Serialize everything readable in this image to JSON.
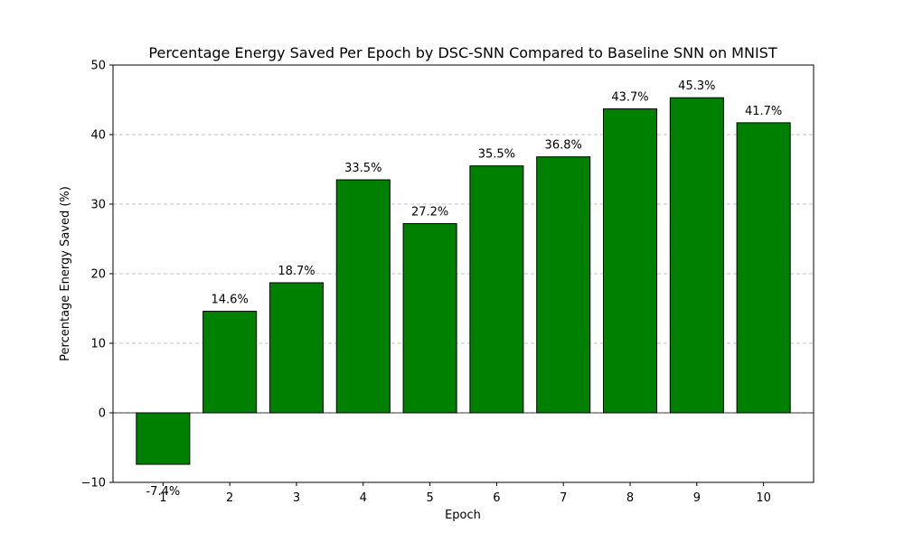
{
  "chart_data": {
    "type": "bar",
    "title": "Percentage Energy Saved Per Epoch by DSC-SNN Compared to Baseline SNN on MNIST",
    "xlabel": "Epoch",
    "ylabel": "Percentage Energy Saved (%)",
    "categories": [
      "1",
      "2",
      "3",
      "4",
      "5",
      "6",
      "7",
      "8",
      "9",
      "10"
    ],
    "values": [
      -7.4,
      14.6,
      18.7,
      33.5,
      27.2,
      35.5,
      36.8,
      43.7,
      45.3,
      41.7
    ],
    "data_labels": [
      "-7.4%",
      "14.6%",
      "18.7%",
      "33.5%",
      "27.2%",
      "35.5%",
      "36.8%",
      "43.7%",
      "45.3%",
      "41.7%"
    ],
    "ylim": [
      -10,
      50
    ],
    "yticks": [
      -10,
      0,
      10,
      20,
      30,
      40,
      50
    ],
    "ytick_labels": [
      "−10",
      "0",
      "10",
      "20",
      "30",
      "40",
      "50"
    ],
    "grid": "y dashed",
    "bar_color": "#008000",
    "bar_edge_color": "#000000",
    "zero_line": true
  }
}
